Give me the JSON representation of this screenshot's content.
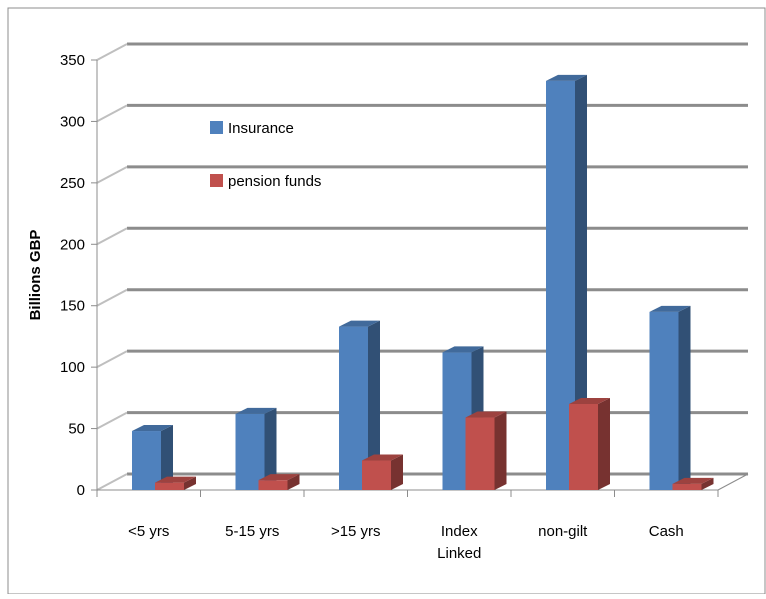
{
  "chart_data": {
    "type": "bar",
    "style": "3d-clustered-column",
    "categories": [
      [
        "<5 yrs"
      ],
      [
        "5-15 yrs"
      ],
      [
        ">15 yrs"
      ],
      [
        "Index",
        "Linked"
      ],
      [
        "non-gilt"
      ],
      [
        "Cash"
      ]
    ],
    "series": [
      {
        "name": "Insurance",
        "values": [
          48,
          62,
          133,
          112,
          333,
          145
        ],
        "color": "#4F81BD"
      },
      {
        "name": "pension funds",
        "values": [
          6,
          8,
          24,
          59,
          70,
          5
        ],
        "color": "#C0504D"
      }
    ],
    "xlabel": "",
    "ylabel": "Billions GBP",
    "ylim": [
      0,
      350
    ],
    "yticks": [
      0,
      50,
      100,
      150,
      200,
      250,
      300,
      350
    ],
    "grid": true,
    "legend_position": "inside-top-left"
  }
}
